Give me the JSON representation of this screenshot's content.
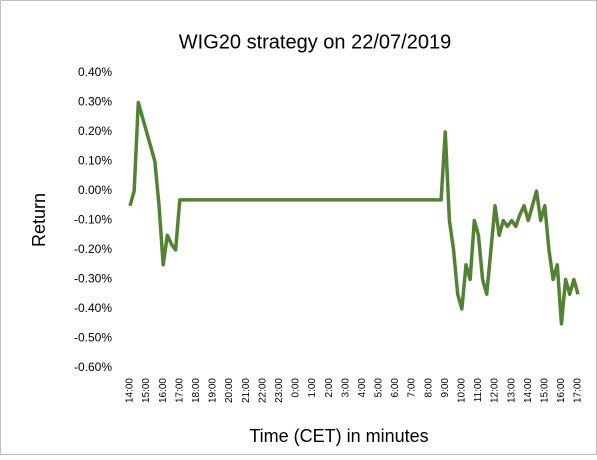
{
  "chart_data": {
    "type": "line",
    "title": "WIG20 strategy on 22/07/2019",
    "y_label": "Return",
    "x_label": "Time (CET) in minutes",
    "categories": [
      "14:00",
      null,
      null,
      null,
      "15:00",
      null,
      null,
      null,
      "16:00",
      null,
      null,
      null,
      "17:00",
      null,
      null,
      null,
      "18:00",
      null,
      null,
      null,
      "19:00",
      null,
      null,
      null,
      "20:00",
      null,
      null,
      null,
      "21:00",
      null,
      null,
      null,
      "22:00",
      null,
      null,
      null,
      "23:00",
      null,
      null,
      null,
      "0:00",
      null,
      null,
      null,
      "1:00",
      null,
      null,
      null,
      "2:00",
      null,
      null,
      null,
      "3:00",
      null,
      null,
      null,
      "4:00",
      null,
      null,
      null,
      "5:00",
      null,
      null,
      null,
      "6:00",
      null,
      null,
      null,
      "7:00",
      null,
      null,
      null,
      "8:00",
      null,
      null,
      null,
      "9:00",
      null,
      null,
      null,
      "10:00",
      null,
      null,
      null,
      "11:00",
      null,
      null,
      null,
      "12:00",
      null,
      null,
      null,
      "13:00",
      null,
      null,
      null,
      "14:00",
      null,
      null,
      null,
      "15:00",
      null,
      null,
      null,
      "16:00",
      null,
      null,
      null,
      "17:00"
    ],
    "series": [
      {
        "color": "#548235",
        "values": [
          -0.05,
          0.0,
          0.3,
          0.25,
          0.2,
          0.15,
          0.1,
          -0.05,
          -0.25,
          -0.15,
          -0.18,
          -0.2,
          -0.03,
          -0.03,
          -0.03,
          -0.03,
          -0.03,
          -0.03,
          -0.03,
          -0.03,
          -0.03,
          -0.03,
          -0.03,
          -0.03,
          -0.03,
          -0.03,
          -0.03,
          -0.03,
          -0.03,
          -0.03,
          -0.03,
          -0.03,
          -0.03,
          -0.03,
          -0.03,
          -0.03,
          -0.03,
          -0.03,
          -0.03,
          -0.03,
          -0.03,
          -0.03,
          -0.03,
          -0.03,
          -0.03,
          -0.03,
          -0.03,
          -0.03,
          -0.03,
          -0.03,
          -0.03,
          -0.03,
          -0.03,
          -0.03,
          -0.03,
          -0.03,
          -0.03,
          -0.03,
          -0.03,
          -0.03,
          -0.03,
          -0.03,
          -0.03,
          -0.03,
          -0.03,
          -0.03,
          -0.03,
          -0.03,
          -0.03,
          -0.03,
          -0.03,
          -0.03,
          -0.03,
          -0.03,
          -0.03,
          -0.03,
          0.2,
          -0.1,
          -0.2,
          -0.35,
          -0.4,
          -0.25,
          -0.3,
          -0.1,
          -0.15,
          -0.3,
          -0.35,
          -0.2,
          -0.05,
          -0.15,
          -0.1,
          -0.12,
          -0.1,
          -0.12,
          -0.08,
          -0.05,
          -0.1,
          -0.05,
          0.0,
          -0.1,
          -0.05,
          -0.2,
          -0.3,
          -0.25,
          -0.45,
          -0.3,
          -0.35,
          -0.3,
          -0.35
        ]
      }
    ],
    "ylim": [
      -0.6,
      0.4
    ],
    "yticks": [
      {
        "value": -0.6,
        "label": "-0.60%"
      },
      {
        "value": -0.5,
        "label": "-0.50%"
      },
      {
        "value": -0.4,
        "label": "-0.40%"
      },
      {
        "value": -0.3,
        "label": "-0.30%"
      },
      {
        "value": -0.2,
        "label": "-0.20%"
      },
      {
        "value": -0.1,
        "label": "-0.10%"
      },
      {
        "value": 0,
        "label": "0.00%"
      },
      {
        "value": 0.1,
        "label": "0.10%"
      },
      {
        "value": 0.2,
        "label": "0.20%"
      },
      {
        "value": 0.3,
        "label": "0.30%"
      },
      {
        "value": 0.4,
        "label": "0.40%"
      }
    ],
    "grid": false
  }
}
